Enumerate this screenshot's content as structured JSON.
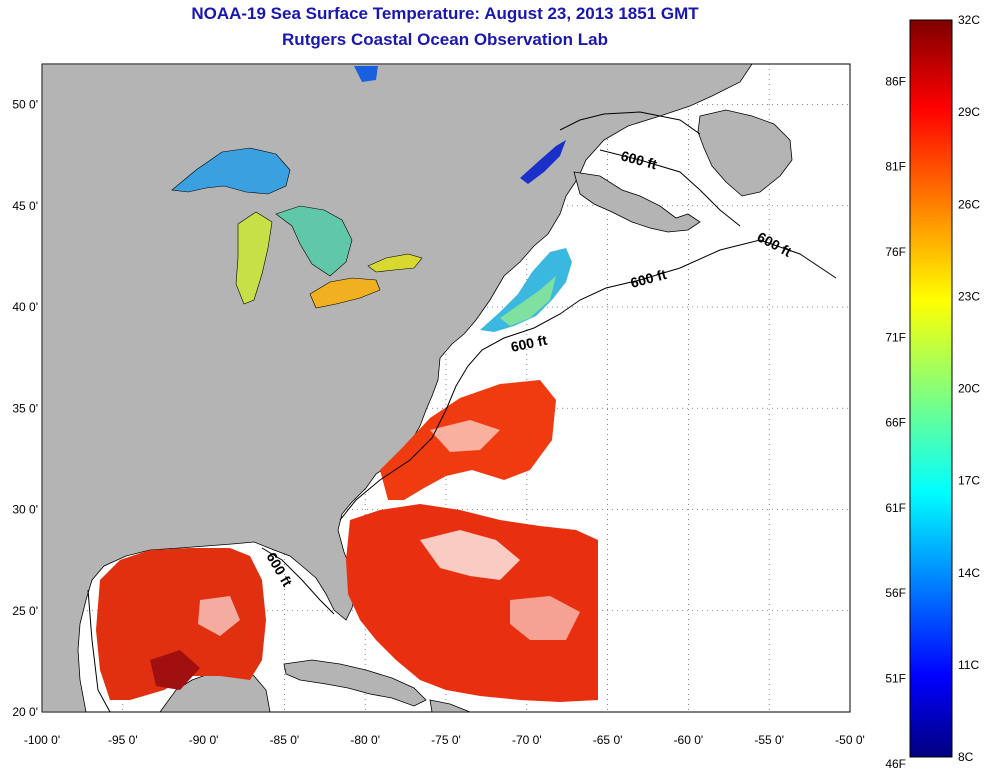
{
  "title": {
    "line1": "NOAA-19 Sea Surface Temperature:  August 23, 2013 1851 GMT",
    "line2": "Rutgers Coastal Ocean Observation Lab"
  },
  "map": {
    "lon_ticks": [
      "-100 0'",
      "-95 0'",
      "-90 0'",
      "-85 0'",
      "-80 0'",
      "-75 0'",
      "-70 0'",
      "-65 0'",
      "-60 0'",
      "-55 0'",
      "-50 0'"
    ],
    "lat_ticks": [
      "20 0'",
      "25 0'",
      "30 0'",
      "35 0'",
      "40 0'",
      "45 0'",
      "50 0'"
    ],
    "lon_range": [
      -100,
      -50
    ],
    "lat_range": [
      20,
      52
    ],
    "contour_labels": [
      "600 ft",
      "600 ft",
      "600 ft",
      "600 ft",
      "600 ft"
    ],
    "land_color": "#b4b4b4",
    "ocean_nodata_color": "#ffffff"
  },
  "colorbar": {
    "celsius_labels": [
      "32C",
      "29C",
      "26C",
      "23C",
      "20C",
      "17C",
      "14C",
      "11C",
      "8C"
    ],
    "fahrenheit_labels": [
      "86F",
      "81F",
      "76F",
      "71F",
      "66F",
      "61F",
      "56F",
      "51F",
      "46F"
    ],
    "range_c": [
      8,
      32
    ]
  }
}
